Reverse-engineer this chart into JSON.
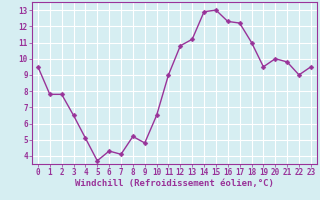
{
  "x": [
    0,
    1,
    2,
    3,
    4,
    5,
    6,
    7,
    8,
    9,
    10,
    11,
    12,
    13,
    14,
    15,
    16,
    17,
    18,
    19,
    20,
    21,
    22,
    23
  ],
  "y": [
    9.5,
    7.8,
    7.8,
    6.5,
    5.1,
    3.7,
    4.3,
    4.1,
    5.2,
    4.8,
    6.5,
    9.0,
    10.8,
    11.2,
    12.9,
    13.0,
    12.3,
    12.2,
    11.0,
    9.5,
    10.0,
    9.8,
    9.0,
    9.5
  ],
  "line_color": "#993399",
  "marker_color": "#993399",
  "bg_color": "#d6eef2",
  "grid_color": "#ffffff",
  "xlabel": "Windchill (Refroidissement éolien,°C)",
  "xlabel_color": "#993399",
  "tick_color": "#993399",
  "ylim": [
    3.5,
    13.5
  ],
  "xlim": [
    -0.5,
    23.5
  ],
  "yticks": [
    4,
    5,
    6,
    7,
    8,
    9,
    10,
    11,
    12,
    13
  ],
  "xticks": [
    0,
    1,
    2,
    3,
    4,
    5,
    6,
    7,
    8,
    9,
    10,
    11,
    12,
    13,
    14,
    15,
    16,
    17,
    18,
    19,
    20,
    21,
    22,
    23
  ],
  "tick_fontsize": 5.5,
  "xlabel_fontsize": 6.5,
  "linewidth": 1.0,
  "markersize": 2.5
}
